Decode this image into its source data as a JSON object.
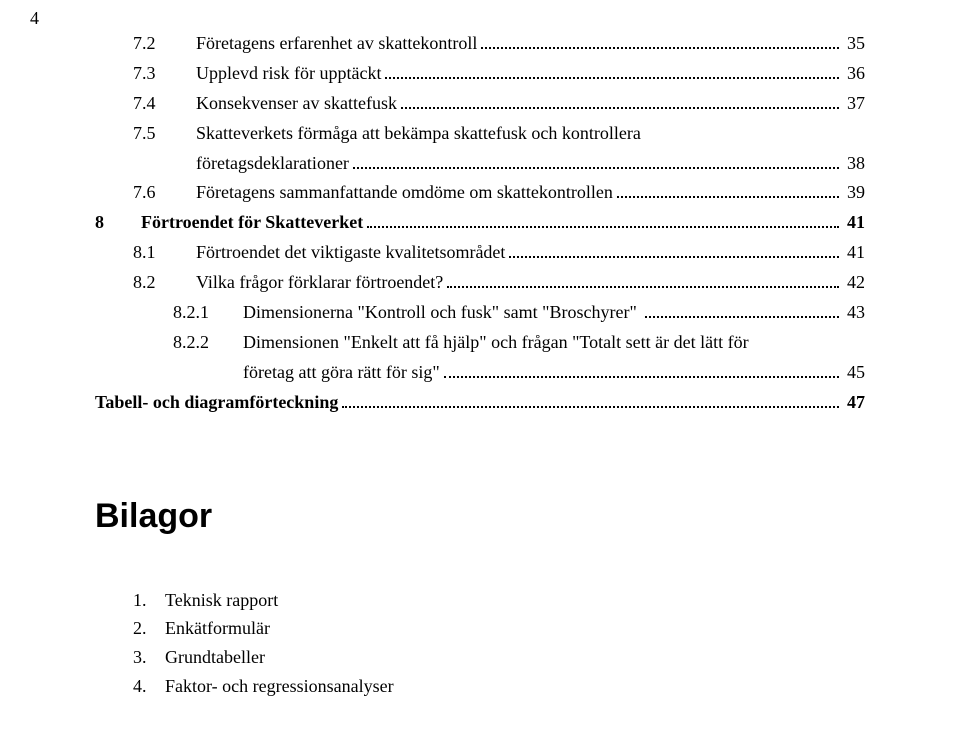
{
  "page_number_top": "4",
  "toc": [
    {
      "level": "lvl-1",
      "num": "7.2",
      "label": "Företagens erfarenhet av skattekontroll",
      "page": "35",
      "bold": false
    },
    {
      "level": "lvl-1",
      "num": "7.3",
      "label": "Upplevd risk för upptäckt",
      "page": "36",
      "bold": false
    },
    {
      "level": "lvl-1",
      "num": "7.4",
      "label": "Konsekvenser av skattefusk",
      "page": "37",
      "bold": false
    },
    {
      "level": "lvl-1",
      "num": "7.5",
      "label": "Skatteverkets förmåga att bekämpa skattefusk och kontrollera",
      "wrap": "företagsdeklarationer",
      "page": "38",
      "bold": false
    },
    {
      "level": "lvl-1",
      "num": "7.6",
      "label": "Företagens sammanfattande omdöme om skattekontrollen",
      "page": "39",
      "bold": false
    },
    {
      "level": "lvl-1b",
      "num": "8",
      "label": "Förtroendet för Skatteverket",
      "page": "41",
      "bold": true
    },
    {
      "level": "lvl-1",
      "num": "8.1",
      "label": "Förtroendet det viktigaste kvalitetsområdet",
      "page": "41",
      "bold": false
    },
    {
      "level": "lvl-1",
      "num": "8.2",
      "label": "Vilka frågor förklarar förtroendet?",
      "page": "42",
      "bold": false
    },
    {
      "level": "lvl-2",
      "num": "8.2.1",
      "label": "Dimensionerna \"Kontroll och fusk\" samt \"Broschyrer\" ",
      "page": "43",
      "bold": false
    },
    {
      "level": "lvl-2",
      "num": "8.2.2",
      "label": "Dimensionen \"Enkelt att få hjälp\" och frågan \"Totalt sett är det lätt för",
      "wrap": "företag att göra rätt för sig\"",
      "page": "45",
      "bold": false
    },
    {
      "level": "lvl-1b",
      "num": "",
      "label": "Tabell- och diagramförteckning",
      "page": "47",
      "bold": true,
      "nonum": true
    }
  ],
  "bilagor_heading": "Bilagor",
  "bilagor": [
    {
      "n": "1.",
      "label": "Teknisk rapport"
    },
    {
      "n": "2.",
      "label": "Enkätformulär"
    },
    {
      "n": "3.",
      "label": "Grundtabeller"
    },
    {
      "n": "4.",
      "label": "Faktor- och regressionsanalyser"
    }
  ]
}
